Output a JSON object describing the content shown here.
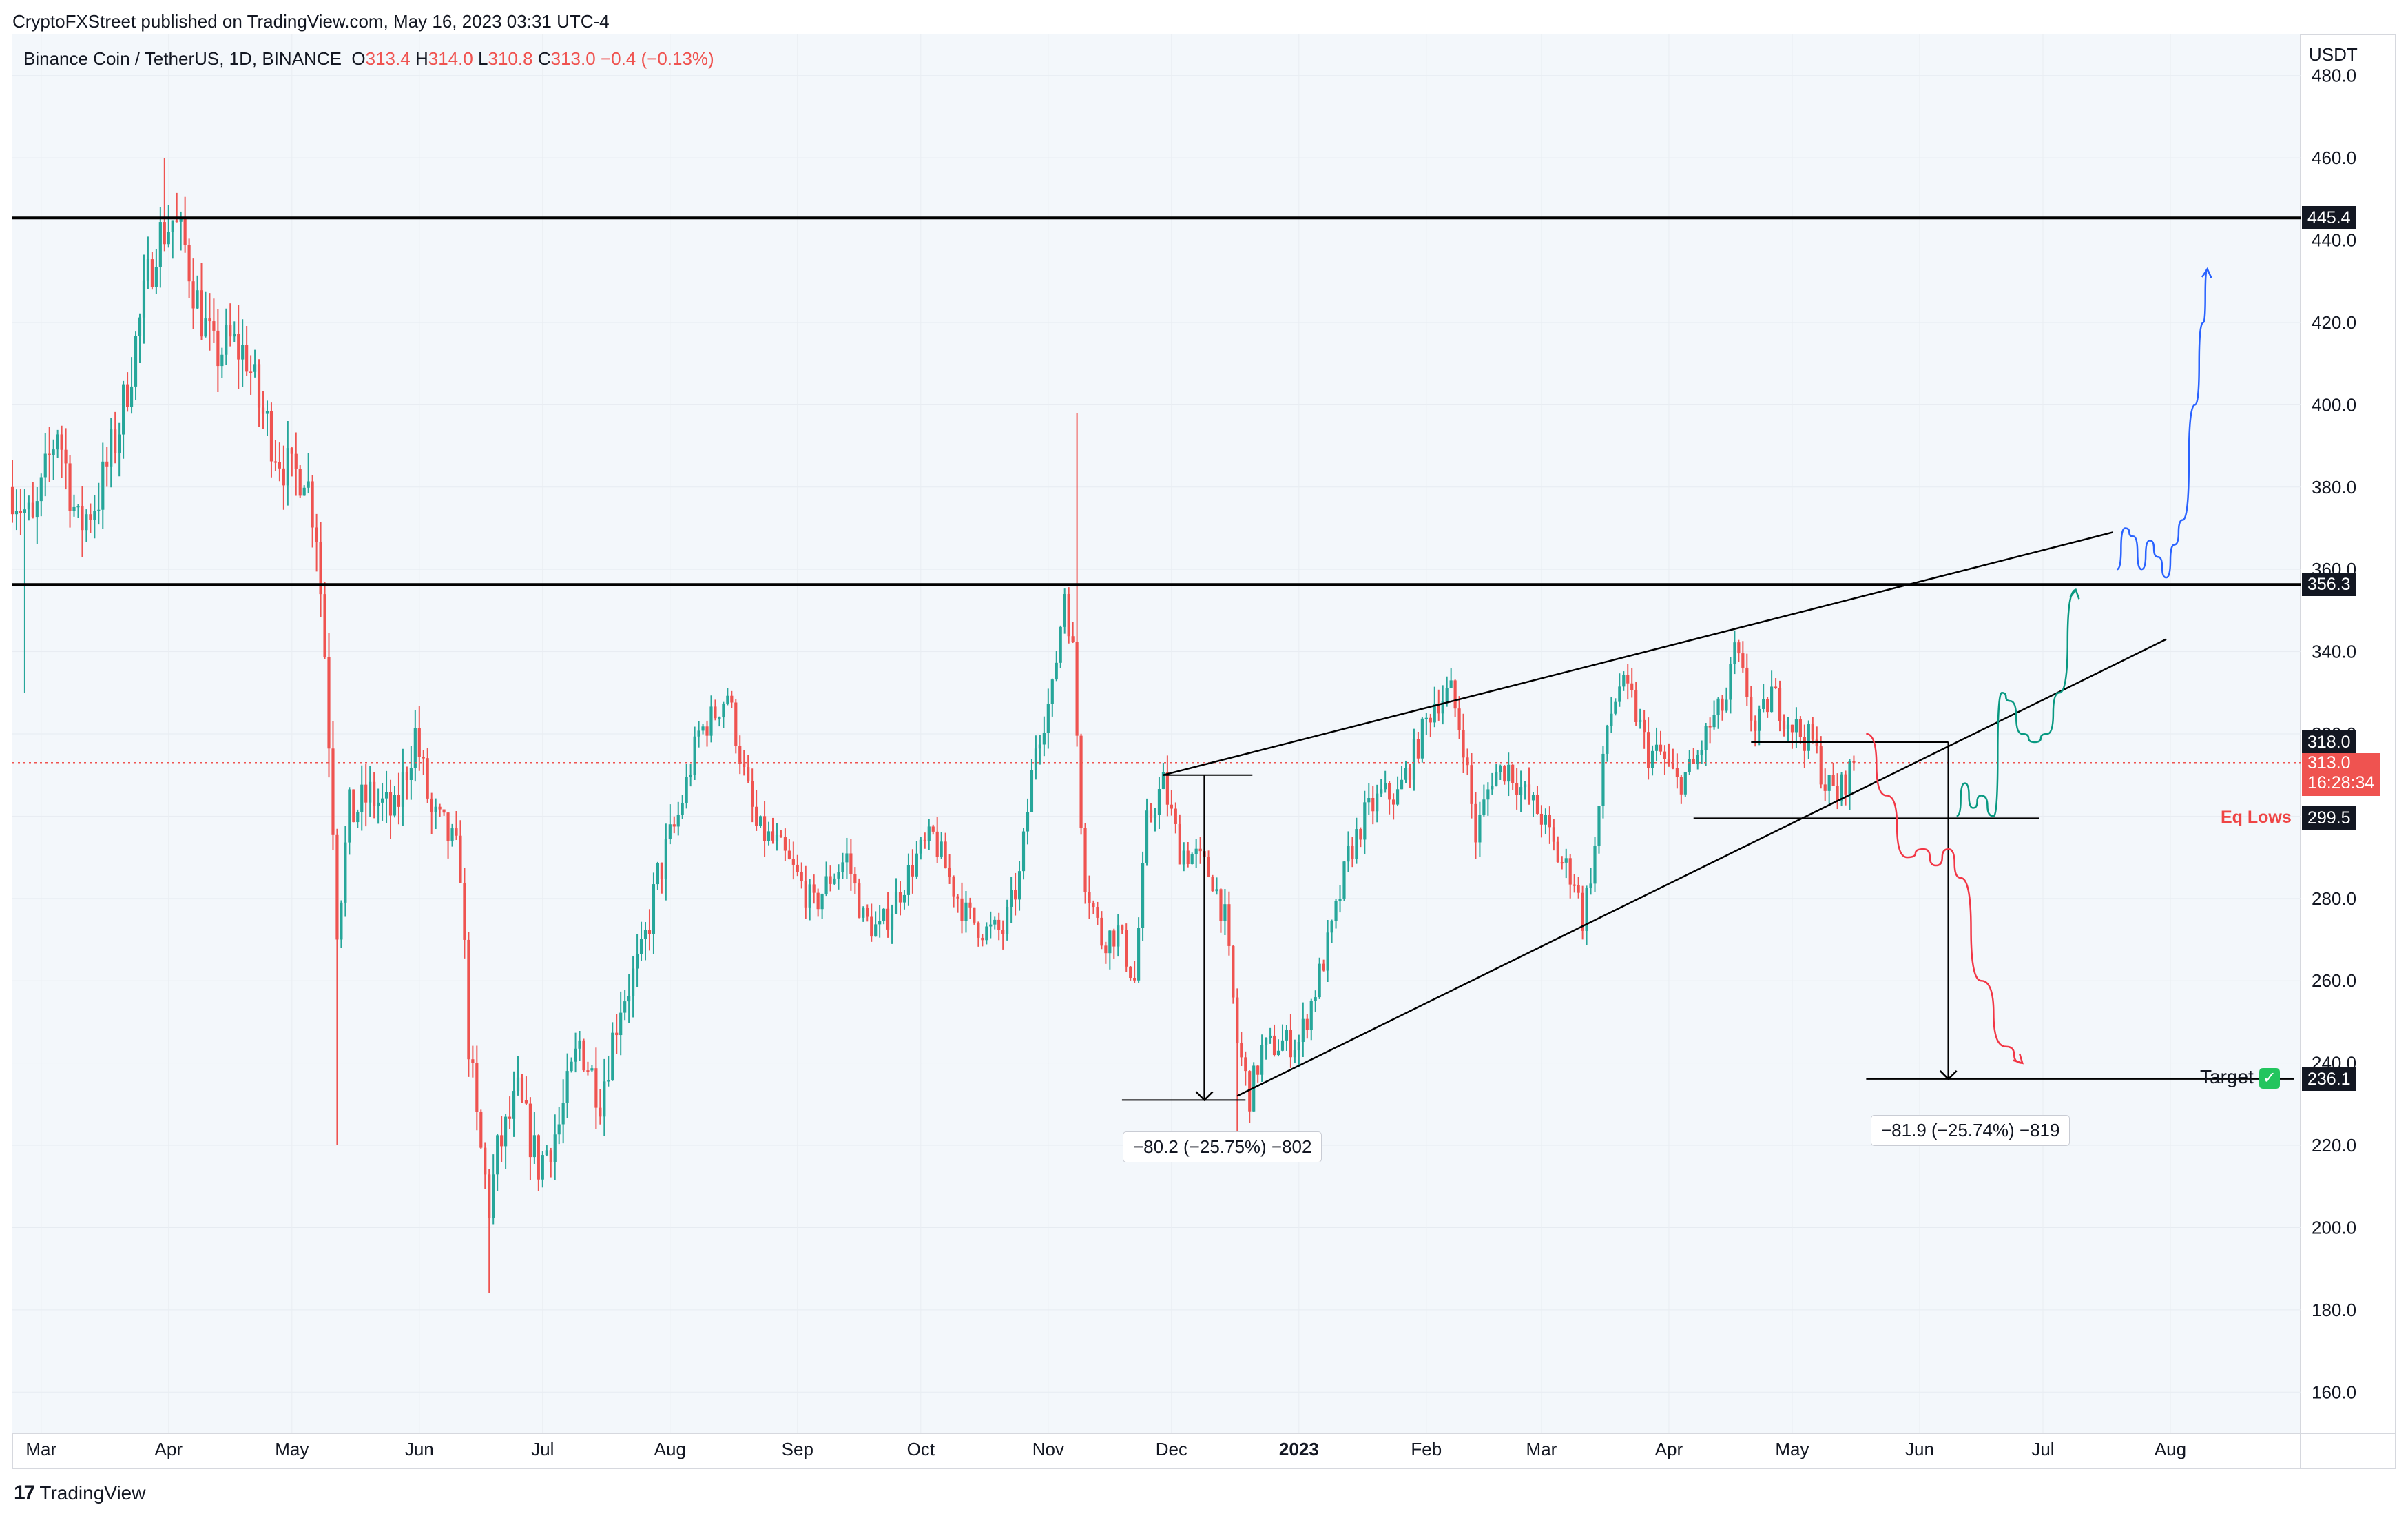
{
  "header": {
    "publisher_line": "CryptoFXStreet published on TradingView.com, May 16, 2023 03:31 UTC-4"
  },
  "legend": {
    "symbol": "Binance Coin / TetherUS, 1D, BINANCE",
    "o_label": "O",
    "o_value": "313.4",
    "h_label": "H",
    "h_value": "314.0",
    "l_label": "L",
    "l_value": "310.8",
    "c_label": "C",
    "c_value": "313.0",
    "change": "−0.4 (−0.13%)"
  },
  "footer": {
    "brand": "TradingView",
    "logo_icon": "tradingview-logo-icon"
  },
  "colors": {
    "up": "#26a69a",
    "down": "#ef5350",
    "blue_path": "#2962ff",
    "green_path": "#089981",
    "red_path": "#f23645"
  },
  "chart_data": {
    "type": "candlestick",
    "currency_label": "USDT",
    "ylim": [
      150,
      490
    ],
    "y_ticks": [
      "480.0",
      "460.0",
      "440.0",
      "420.0",
      "400.0",
      "380.0",
      "360.0",
      "340.0",
      "320.0",
      "300.0",
      "280.0",
      "260.0",
      "240.0",
      "220.0",
      "200.0",
      "180.0",
      "160.0"
    ],
    "x_ticks": [
      {
        "label": "Mar",
        "date": "2022-03-01"
      },
      {
        "label": "Apr",
        "date": "2022-04-01"
      },
      {
        "label": "May",
        "date": "2022-05-01"
      },
      {
        "label": "Jun",
        "date": "2022-06-01"
      },
      {
        "label": "Jul",
        "date": "2022-07-01"
      },
      {
        "label": "Aug",
        "date": "2022-08-01"
      },
      {
        "label": "Sep",
        "date": "2022-09-01"
      },
      {
        "label": "Oct",
        "date": "2022-10-01"
      },
      {
        "label": "Nov",
        "date": "2022-11-01"
      },
      {
        "label": "Dec",
        "date": "2022-12-01"
      },
      {
        "label": "2023",
        "date": "2023-01-01",
        "bold": true
      },
      {
        "label": "Feb",
        "date": "2023-02-01"
      },
      {
        "label": "Mar",
        "date": "2023-03-01"
      },
      {
        "label": "Apr",
        "date": "2023-04-01"
      },
      {
        "label": "May",
        "date": "2023-05-01"
      },
      {
        "label": "Jun",
        "date": "2023-06-01"
      },
      {
        "label": "Jul",
        "date": "2023-07-01"
      },
      {
        "label": "Aug",
        "date": "2023-08-01"
      }
    ],
    "date_range": [
      "2022-02-22",
      "2023-08-31"
    ],
    "price_path": [
      [
        "2022-02-22",
        380
      ],
      [
        "2022-02-27",
        370
      ],
      [
        "2022-03-05",
        395
      ],
      [
        "2022-03-10",
        370
      ],
      [
        "2022-03-15",
        378
      ],
      [
        "2022-03-20",
        395
      ],
      [
        "2022-03-25",
        420
      ],
      [
        "2022-03-29",
        440
      ],
      [
        "2022-04-02",
        445
      ],
      [
        "2022-04-05",
        438
      ],
      [
        "2022-04-08",
        425
      ],
      [
        "2022-04-12",
        412
      ],
      [
        "2022-04-16",
        415
      ],
      [
        "2022-04-20",
        412
      ],
      [
        "2022-04-23",
        400
      ],
      [
        "2022-04-27",
        390
      ],
      [
        "2022-05-01",
        382
      ],
      [
        "2022-05-04",
        385
      ],
      [
        "2022-05-07",
        370
      ],
      [
        "2022-05-09",
        340
      ],
      [
        "2022-05-11",
        300
      ],
      [
        "2022-05-12",
        275
      ],
      [
        "2022-05-15",
        300
      ],
      [
        "2022-05-20",
        305
      ],
      [
        "2022-05-26",
        300
      ],
      [
        "2022-05-31",
        320
      ],
      [
        "2022-06-04",
        300
      ],
      [
        "2022-06-08",
        295
      ],
      [
        "2022-06-11",
        288
      ],
      [
        "2022-06-13",
        245
      ],
      [
        "2022-06-15",
        225
      ],
      [
        "2022-06-18",
        205
      ],
      [
        "2022-06-20",
        218
      ],
      [
        "2022-06-25",
        232
      ],
      [
        "2022-06-30",
        215
      ],
      [
        "2022-07-05",
        225
      ],
      [
        "2022-07-10",
        245
      ],
      [
        "2022-07-15",
        232
      ],
      [
        "2022-07-20",
        255
      ],
      [
        "2022-07-25",
        265
      ],
      [
        "2022-07-29",
        285
      ],
      [
        "2022-08-03",
        300
      ],
      [
        "2022-08-08",
        320
      ],
      [
        "2022-08-12",
        325
      ],
      [
        "2022-08-15",
        330
      ],
      [
        "2022-08-19",
        310
      ],
      [
        "2022-08-22",
        297
      ],
      [
        "2022-08-27",
        293
      ],
      [
        "2022-09-01",
        285
      ],
      [
        "2022-09-05",
        278
      ],
      [
        "2022-09-09",
        285
      ],
      [
        "2022-09-13",
        290
      ],
      [
        "2022-09-17",
        275
      ],
      [
        "2022-09-21",
        272
      ],
      [
        "2022-09-25",
        280
      ],
      [
        "2022-09-30",
        290
      ],
      [
        "2022-10-04",
        295
      ],
      [
        "2022-10-08",
        285
      ],
      [
        "2022-10-12",
        276
      ],
      [
        "2022-10-17",
        272
      ],
      [
        "2022-10-21",
        272
      ],
      [
        "2022-10-25",
        285
      ],
      [
        "2022-10-29",
        318
      ],
      [
        "2022-11-02",
        330
      ],
      [
        "2022-11-05",
        355
      ],
      [
        "2022-11-07",
        340
      ],
      [
        "2022-11-09",
        300
      ],
      [
        "2022-11-10",
        285
      ],
      [
        "2022-11-14",
        270
      ],
      [
        "2022-11-18",
        272
      ],
      [
        "2022-11-22",
        260
      ],
      [
        "2022-11-25",
        298
      ],
      [
        "2022-11-29",
        308
      ],
      [
        "2022-12-03",
        292
      ],
      [
        "2022-12-07",
        290
      ],
      [
        "2022-12-11",
        285
      ],
      [
        "2022-12-14",
        275
      ],
      [
        "2022-12-17",
        245
      ],
      [
        "2022-12-20",
        232
      ],
      [
        "2022-12-23",
        243
      ],
      [
        "2022-12-28",
        245
      ],
      [
        "2023-01-01",
        245
      ],
      [
        "2023-01-05",
        258
      ],
      [
        "2023-01-09",
        272
      ],
      [
        "2023-01-13",
        290
      ],
      [
        "2023-01-17",
        300
      ],
      [
        "2023-01-21",
        305
      ],
      [
        "2023-01-25",
        305
      ],
      [
        "2023-01-29",
        315
      ],
      [
        "2023-02-03",
        328
      ],
      [
        "2023-02-07",
        330
      ],
      [
        "2023-02-10",
        318
      ],
      [
        "2023-02-13",
        295
      ],
      [
        "2023-02-17",
        310
      ],
      [
        "2023-02-21",
        312
      ],
      [
        "2023-02-25",
        305
      ],
      [
        "2023-03-01",
        300
      ],
      [
        "2023-03-05",
        290
      ],
      [
        "2023-03-09",
        285
      ],
      [
        "2023-03-11",
        275
      ],
      [
        "2023-03-14",
        292
      ],
      [
        "2023-03-17",
        322
      ],
      [
        "2023-03-20",
        332
      ],
      [
        "2023-03-23",
        328
      ],
      [
        "2023-03-27",
        315
      ],
      [
        "2023-03-30",
        315
      ],
      [
        "2023-04-03",
        308
      ],
      [
        "2023-04-07",
        312
      ],
      [
        "2023-04-11",
        322
      ],
      [
        "2023-04-15",
        328
      ],
      [
        "2023-04-17",
        340
      ],
      [
        "2023-04-20",
        330
      ],
      [
        "2023-04-22",
        320
      ],
      [
        "2023-04-26",
        330
      ],
      [
        "2023-04-29",
        325
      ],
      [
        "2023-05-03",
        320
      ],
      [
        "2023-05-06",
        318
      ],
      [
        "2023-05-09",
        308
      ],
      [
        "2023-05-12",
        305
      ],
      [
        "2023-05-16",
        313
      ]
    ],
    "candle_ranges": [
      {
        "start": "2022-02-22",
        "end": "2022-05-15",
        "volatility": 12
      },
      {
        "start": "2022-05-16",
        "end": "2022-07-31",
        "volatility": 10
      },
      {
        "start": "2022-08-01",
        "end": "2022-12-31",
        "volatility": 7
      },
      {
        "start": "2023-01-01",
        "end": "2023-05-16",
        "volatility": 7
      }
    ],
    "wicks": [
      {
        "date": "2022-02-25",
        "high": 330,
        "low": 330
      },
      {
        "date": "2022-05-12",
        "low": 220
      },
      {
        "date": "2022-06-18",
        "low": 184
      },
      {
        "date": "2022-11-08",
        "high": 398
      },
      {
        "date": "2022-12-17",
        "low": 220
      },
      {
        "date": "2022-03-31",
        "high": 460
      }
    ],
    "horizontal_levels": [
      {
        "price": 445.4,
        "label": "445.4",
        "style": "thick"
      },
      {
        "price": 356.3,
        "label": "356.3",
        "style": "thick"
      },
      {
        "price": 318.0,
        "label": "318.0",
        "style": "thin",
        "from": "2023-04-21",
        "to": "2023-06-08"
      },
      {
        "price": 299.5,
        "label": "299.5",
        "style": "thin",
        "from": "2023-04-07",
        "to": "2023-06-30",
        "text": "Eq Lows"
      },
      {
        "price": 236.1,
        "label": "236.1",
        "style": "thin",
        "from": "2023-05-19",
        "to": "2023-08-31",
        "text": "Target"
      }
    ],
    "current_price": {
      "price": "313.0",
      "countdown": "16:28:34"
    },
    "wedge": {
      "upper": [
        [
          "2022-11-29",
          310
        ],
        [
          "2023-07-18",
          369
        ]
      ],
      "lower": [
        [
          "2022-12-17",
          232
        ],
        [
          "2023-07-31",
          343
        ]
      ]
    },
    "measures": [
      {
        "from": [
          "2022-11-29",
          310
        ],
        "to": [
          "2022-12-19",
          231
        ],
        "text": "−80.2 (−25.75%) −802"
      },
      {
        "from": [
          "2023-06-08",
          318
        ],
        "to": [
          "2023-06-08",
          236.1
        ],
        "text": "−81.9 (−25.74%) −819"
      }
    ],
    "scenario_paths": [
      {
        "name": "blue",
        "color": "#2962ff",
        "points": [
          [
            "2023-07-19",
            360
          ],
          [
            "2023-07-21",
            370
          ],
          [
            "2023-07-23",
            368
          ],
          [
            "2023-07-25",
            360
          ],
          [
            "2023-07-27",
            367
          ],
          [
            "2023-07-29",
            363
          ],
          [
            "2023-07-31",
            358
          ],
          [
            "2023-08-02",
            366
          ],
          [
            "2023-08-04",
            372
          ],
          [
            "2023-08-07",
            400
          ],
          [
            "2023-08-09",
            420
          ],
          [
            "2023-08-10",
            433
          ]
        ]
      },
      {
        "name": "green",
        "color": "#089981",
        "points": [
          [
            "2023-06-10",
            300
          ],
          [
            "2023-06-12",
            308
          ],
          [
            "2023-06-14",
            302
          ],
          [
            "2023-06-16",
            305
          ],
          [
            "2023-06-19",
            300
          ],
          [
            "2023-06-21",
            330
          ],
          [
            "2023-06-23",
            328
          ],
          [
            "2023-06-26",
            320
          ],
          [
            "2023-06-29",
            318
          ],
          [
            "2023-07-02",
            320
          ],
          [
            "2023-07-05",
            330
          ],
          [
            "2023-07-09",
            355
          ]
        ]
      },
      {
        "name": "red",
        "color": "#f23645",
        "points": [
          [
            "2023-05-19",
            320
          ],
          [
            "2023-05-24",
            305
          ],
          [
            "2023-05-29",
            290
          ],
          [
            "2023-06-02",
            292
          ],
          [
            "2023-06-05",
            288
          ],
          [
            "2023-06-08",
            292
          ],
          [
            "2023-06-11",
            285
          ],
          [
            "2023-06-16",
            260
          ],
          [
            "2023-06-22",
            244
          ],
          [
            "2023-06-26",
            240
          ]
        ]
      }
    ]
  }
}
